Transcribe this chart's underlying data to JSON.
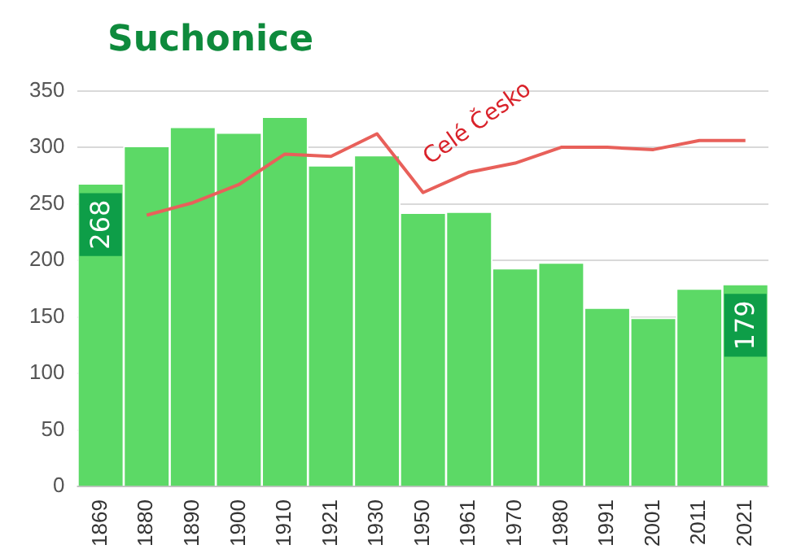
{
  "chart_data": {
    "type": "bar",
    "title": "Suchonice",
    "categories": [
      "1869",
      "1880",
      "1890",
      "1900",
      "1910",
      "1921",
      "1930",
      "1950",
      "1961",
      "1970",
      "1980",
      "1991",
      "2001",
      "2011",
      "2021"
    ],
    "series": [
      {
        "color": "#5cd966",
        "values": [
          268,
          301,
          318,
          313,
          327,
          284,
          293,
          242,
          243,
          193,
          198,
          158,
          149,
          175,
          179
        ],
        "value_labels": [
          "268",
          null,
          null,
          null,
          null,
          null,
          null,
          null,
          null,
          null,
          null,
          null,
          null,
          null,
          "179"
        ]
      },
      {
        "type": "line",
        "name": "Celé Česko",
        "color": "#e8605a",
        "values": [
          null,
          240,
          251,
          267,
          294,
          292,
          312,
          260,
          278,
          286,
          300,
          300,
          298,
          306,
          306
        ]
      }
    ],
    "ylim": [
      0,
      350
    ],
    "yticks": [
      0,
      50,
      100,
      150,
      200,
      250,
      300,
      350
    ],
    "grid": "y",
    "legend": false,
    "marker": "none"
  }
}
